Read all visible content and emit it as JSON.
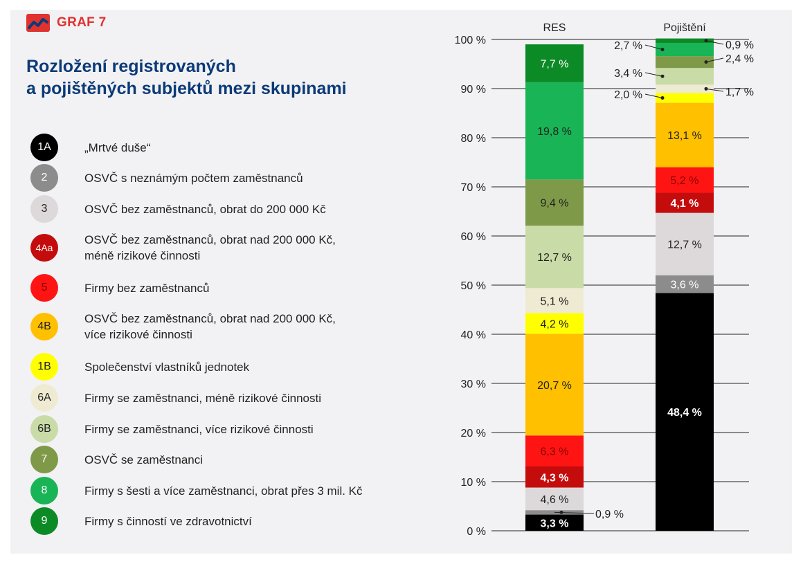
{
  "header": {
    "graf_label": "GRAF 7"
  },
  "title_lines": [
    "Rozložení registrovaných",
    "a pojištěných subjektů mezi skupinami"
  ],
  "legend": [
    {
      "code": "1A",
      "label": "„Mrtvé duše“",
      "color": "#000000",
      "text_color": "#ffffff"
    },
    {
      "code": "2",
      "label": "OSVČ s neznámým počtem zaměstnanců",
      "color": "#8c8c8c",
      "text_color": "#ffffff"
    },
    {
      "code": "3",
      "label": "OSVČ bez zaměstnanců, obrat do 200 000 Kč",
      "color": "#ddd9da",
      "text_color": "#222222"
    },
    {
      "code": "4Aa",
      "label": "OSVČ bez zaměstnanců, obrat nad 200 000 Kč, méně rizikové činnosti",
      "label_lines": [
        "OSVČ bez zaměstnanců, obrat nad 200 000 Kč,",
        "méně rizikové činnosti"
      ],
      "color": "#c40c0c",
      "text_color": "#ffffff"
    },
    {
      "code": "5",
      "label": "Firmy bez zaměstnanců",
      "color": "#ff1414",
      "text_color": "#8a0000"
    },
    {
      "code": "4B",
      "label": "OSVČ bez zaměstnanců, obrat nad 200 000 Kč, více rizikové činnosti",
      "label_lines": [
        "OSVČ bez zaměstnanců, obrat nad 200 000 Kč,",
        "více rizikové činnosti"
      ],
      "color": "#ffc000",
      "text_color": "#222222"
    },
    {
      "code": "1B",
      "label": "Společenství vlastníků jednotek",
      "color": "#ffff00",
      "text_color": "#222222"
    },
    {
      "code": "6A",
      "label": "Firmy se zaměstnanci, méně rizikové činnosti",
      "color": "#efebd2",
      "text_color": "#222222"
    },
    {
      "code": "6B",
      "label": "Firmy se zaměstnanci, více rizikové činnosti",
      "color": "#c9dba6",
      "text_color": "#222222"
    },
    {
      "code": "7",
      "label": "OSVČ se zaměstnanci",
      "color": "#7e9a48",
      "text_color": "#ffffff"
    },
    {
      "code": "8",
      "label": "Firmy s šesti a více zaměstnanci, obrat přes 3 mil. Kč",
      "color": "#19b456",
      "text_color": "#ffffff"
    },
    {
      "code": "9",
      "label": "Firmy s činností ve zdravotnictví",
      "color": "#0c8a26",
      "text_color": "#ffffff"
    }
  ],
  "chart_data": {
    "type": "bar",
    "stacked": true,
    "percent": true,
    "ylim": [
      0,
      100
    ],
    "yticks": [
      "0 %",
      "10 %",
      "20 %",
      "30 %",
      "40 %",
      "50 %",
      "60 %",
      "70 %",
      "80 %",
      "90 %",
      "100 %"
    ],
    "categories": [
      "RES",
      "Pojištění"
    ],
    "series": [
      {
        "name": "1A",
        "color": "#000000",
        "values": [
          3.3,
          48.4
        ],
        "labels": [
          "3,3 %",
          "48,4 %"
        ],
        "label_color": "#ffffff"
      },
      {
        "name": "2",
        "color": "#8c8c8c",
        "values": [
          0.9,
          3.6
        ],
        "labels": [
          "0,9 %",
          "3,6 %"
        ],
        "label_color": "#ffffff"
      },
      {
        "name": "3",
        "color": "#ddd9da",
        "values": [
          4.6,
          12.7
        ],
        "labels": [
          "4,6 %",
          "12,7 %"
        ],
        "label_color": "#222222"
      },
      {
        "name": "4Aa",
        "color": "#c40c0c",
        "values": [
          4.3,
          4.1
        ],
        "labels": [
          "4,3 %",
          "4,1 %"
        ],
        "label_color": "#ffffff"
      },
      {
        "name": "5",
        "color": "#ff1414",
        "values": [
          6.3,
          5.2
        ],
        "labels": [
          "6,3 %",
          "5,2 %"
        ],
        "label_color": "#8a0000"
      },
      {
        "name": "4B",
        "color": "#ffc000",
        "values": [
          20.7,
          13.1
        ],
        "labels": [
          "20,7 %",
          "13,1 %"
        ],
        "label_color": "#222222"
      },
      {
        "name": "1B",
        "color": "#ffff00",
        "values": [
          4.2,
          2.0
        ],
        "labels": [
          "4,2 %",
          "2,0 %"
        ],
        "label_color": "#222222"
      },
      {
        "name": "6A",
        "color": "#efebd2",
        "values": [
          5.1,
          1.7
        ],
        "labels": [
          "5,1 %",
          "1,7 %"
        ],
        "label_color": "#222222"
      },
      {
        "name": "6B",
        "color": "#c9dba6",
        "values": [
          12.7,
          3.4
        ],
        "labels": [
          "12,7 %",
          "3,4 %"
        ],
        "label_color": "#222222"
      },
      {
        "name": "7",
        "color": "#7e9a48",
        "values": [
          9.4,
          2.4
        ],
        "labels": [
          "9,4 %",
          "2,4 %"
        ],
        "label_color": "#222222"
      },
      {
        "name": "8",
        "color": "#19b456",
        "values": [
          19.8,
          2.7
        ],
        "labels": [
          "19,8 %",
          "2,7 %"
        ],
        "label_color": "#222222"
      },
      {
        "name": "9",
        "color": "#0c8a26",
        "values": [
          7.7,
          0.9
        ],
        "labels": [
          "7,7 %",
          "0,9 %"
        ],
        "label_color": "#ffffff"
      }
    ]
  }
}
